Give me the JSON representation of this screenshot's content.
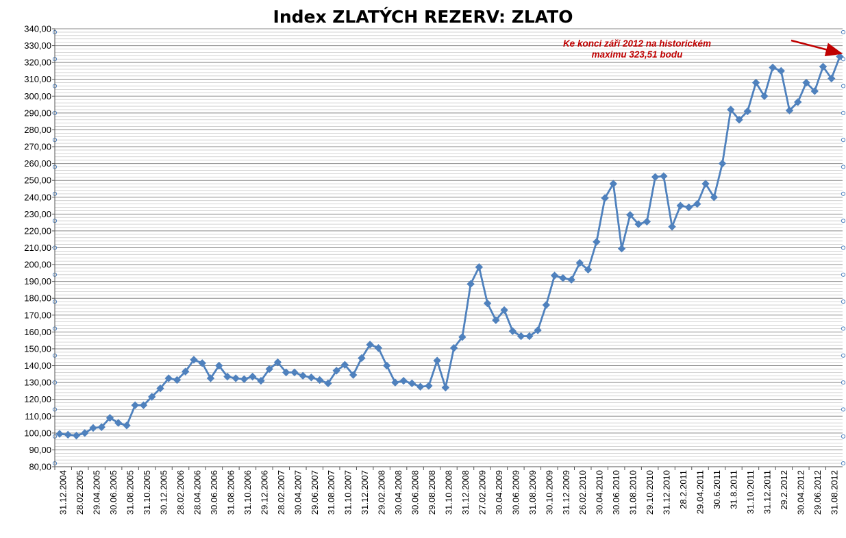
{
  "chart_data": {
    "type": "line",
    "title": "Index ZLATÝCH REZERV: ZLATO",
    "xlabel": "",
    "ylabel": "",
    "ylim": [
      80,
      340
    ],
    "y_step": 10,
    "y_minor_step": 2,
    "grid": true,
    "legend": "none",
    "x_labels": [
      "31.12.2004",
      "28.02.2005",
      "29.04.2005",
      "30.06.2005",
      "31.08.2005",
      "31.10.2005",
      "30.12.2005",
      "28.02.2006",
      "28.04.2006",
      "30.06.2006",
      "31.08.2006",
      "31.10.2006",
      "29.12.2006",
      "28.02.2007",
      "30.04.2007",
      "29.06.2007",
      "31.08.2007",
      "31.10.2007",
      "31.12.2007",
      "29.02.2008",
      "30.04.2008",
      "30.06.2008",
      "29.08.2008",
      "31.10.2008",
      "31.12.2008",
      "27.02.2009",
      "30.04.2009",
      "30.06.2009",
      "31.08.2009",
      "30.10.2009",
      "31.12.2009",
      "26.02.2010",
      "30.04.2010",
      "30.06.2010",
      "31.08.2010",
      "29.10.2010",
      "31.12.2010",
      "28.2.2011",
      "29.04.2011",
      "30.6.2011",
      "31.8.2011",
      "31.10.2011",
      "31.12.2011",
      "29.2.2012",
      "30.04.2012",
      "29.06.2012",
      "31.08.2012"
    ],
    "series": [
      {
        "name": "",
        "color": "#4f81bd",
        "values": [
          99.5,
          99,
          98.5,
          100,
          103,
          103.5,
          109,
          106,
          104.5,
          116.5,
          116.5,
          121.5,
          126.5,
          132.5,
          131.5,
          136.5,
          143.5,
          141.5,
          132.5,
          140,
          133.5,
          132.5,
          132,
          133.5,
          131,
          138,
          142,
          136,
          136,
          134,
          133,
          131.5,
          129.5,
          137,
          140.5,
          134.5,
          144.5,
          152.5,
          150.5,
          140,
          130,
          131,
          129.5,
          127.5,
          128,
          143,
          127,
          150.5,
          157,
          188.5,
          198.5,
          177,
          167,
          173,
          160.5,
          157.5,
          157.5,
          161,
          176,
          193.5,
          192,
          191,
          201,
          197,
          213.5,
          239.5,
          248,
          209.5,
          229.5,
          224,
          225.5,
          252,
          252.5,
          222.5,
          235,
          234,
          236,
          248,
          240,
          260,
          292,
          286,
          291,
          308,
          300,
          317,
          315,
          291.5,
          296.5,
          308,
          303,
          317.5,
          310.5,
          323.51
        ]
      }
    ],
    "annotation": {
      "line1": "Ke konci září 2012 na historickém",
      "line2": "maximu 323,51 bodu",
      "color": "#c00000"
    }
  }
}
